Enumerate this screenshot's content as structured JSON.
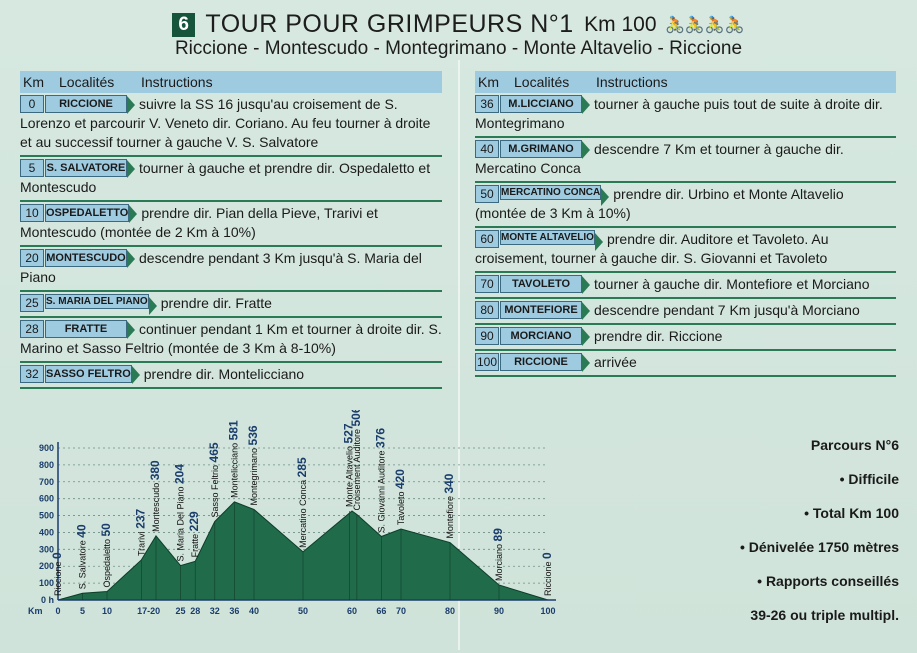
{
  "header": {
    "number": "6",
    "title": "TOUR POUR GRIMPEURS N°1",
    "km": "Km 100",
    "bikes": "🚴🚴🚴🚴",
    "subtitle": "Riccione - Montescudo - Montegrimano - Monte Altavelio - Riccione"
  },
  "columns": {
    "km": "Km",
    "localites": "Localités",
    "instructions": "Instructions"
  },
  "left_rows": [
    {
      "km": "0",
      "loc": "RICCIONE",
      "text": "suivre la SS 16 jusqu'au croisement de S. Lorenzo et parcourir V. Veneto dir. Coriano. Au feu tourner à droite et au successif tourner à gauche V. S. Salvatore"
    },
    {
      "km": "5",
      "loc": "S. SALVATORE",
      "text": "tourner à gauche et prendre dir. Ospedaletto et Montescudo"
    },
    {
      "km": "10",
      "loc": "OSPEDALETTO",
      "text": "prendre dir. Pian della Pieve, Trarivi et Montescudo (montée de 2 Km à 10%)"
    },
    {
      "km": "20",
      "loc": "MONTESCUDO",
      "text": "descendre pendant 3 Km jusqu'à S. Maria del Piano"
    },
    {
      "km": "25",
      "loc": "S. MARIA DEL PIANO",
      "text": "prendre dir. Fratte"
    },
    {
      "km": "28",
      "loc": "FRATTE",
      "text": "continuer pendant 1 Km et tourner à droite dir. S. Marino et Sasso Feltrio (montée de 3 Km à 8-10%)"
    },
    {
      "km": "32",
      "loc": "SASSO FELTRO",
      "text": "prendre dir. Montelicciano"
    }
  ],
  "right_rows": [
    {
      "km": "36",
      "loc": "M.LICCIANO",
      "text": "tourner à gauche puis tout de suite à droite dir. Montegrimano"
    },
    {
      "km": "40",
      "loc": "M.GRIMANO",
      "text": "descendre 7 Km et tourner à gauche dir. Mercatino Conca"
    },
    {
      "km": "50",
      "loc": "MERCATINO CONCA",
      "text": "prendre dir. Urbino et Monte Altavelio (montée de 3 Km à 10%)"
    },
    {
      "km": "60",
      "loc": "MONTE ALTAVELIO",
      "text": "prendre dir. Auditore et Tavoleto. Au croisement, tourner à gauche dir. S. Giovanni et Tavoleto"
    },
    {
      "km": "70",
      "loc": "TAVOLETO",
      "text": "tourner à gauche dir. Montefiore et Morciano"
    },
    {
      "km": "80",
      "loc": "MONTEFIORE",
      "text": "descendre pendant 7 Km jusqu'à Morciano"
    },
    {
      "km": "90",
      "loc": "MORCIANO",
      "text": "prendre dir. Riccione"
    },
    {
      "km": "100",
      "loc": "RICCIONE",
      "text": "arrivée"
    }
  ],
  "info": {
    "parcours": "Parcours N°6",
    "difficulty": "• Difficile",
    "total": "• Total Km 100",
    "denivelee": "• Dénivelée 1750 mètres",
    "rapports": "• Rapports conseillés",
    "gears": "39-26 ou triple multipl."
  },
  "chart_data": {
    "type": "area",
    "ylim": [
      0,
      900
    ],
    "y_ticks": [
      "0 h",
      "100",
      "200",
      "300",
      "400",
      "500",
      "600",
      "700",
      "800",
      "900"
    ],
    "x_label": "Km",
    "x_ticks": [
      "0",
      "5",
      "10",
      "17-20",
      "25",
      "28",
      "32",
      "36",
      "40",
      "50",
      "60",
      "66",
      "70",
      "80",
      "90",
      "100"
    ],
    "x_tick_values": [
      0,
      5,
      10,
      18.5,
      25,
      28,
      32,
      36,
      40,
      50,
      60,
      66,
      70,
      80,
      90,
      100
    ],
    "profile": [
      {
        "x": 0,
        "y": 0
      },
      {
        "x": 5,
        "y": 40
      },
      {
        "x": 10,
        "y": 50
      },
      {
        "x": 17,
        "y": 237
      },
      {
        "x": 20,
        "y": 380
      },
      {
        "x": 25,
        "y": 204
      },
      {
        "x": 28,
        "y": 229
      },
      {
        "x": 32,
        "y": 465
      },
      {
        "x": 36,
        "y": 581
      },
      {
        "x": 40,
        "y": 536
      },
      {
        "x": 50,
        "y": 285
      },
      {
        "x": 60,
        "y": 527
      },
      {
        "x": 61,
        "y": 506
      },
      {
        "x": 66,
        "y": 376
      },
      {
        "x": 70,
        "y": 420
      },
      {
        "x": 80,
        "y": 340
      },
      {
        "x": 90,
        "y": 89
      },
      {
        "x": 100,
        "y": 0
      }
    ],
    "labels": [
      {
        "name": "Riccione",
        "alt": "0",
        "x": 0
      },
      {
        "name": "S. Salvatore",
        "alt": "40",
        "x": 5
      },
      {
        "name": "Ospedaletto",
        "alt": "50",
        "x": 10
      },
      {
        "name": "Trarivi",
        "alt": "237",
        "x": 17
      },
      {
        "name": "Montescudo",
        "alt": "380",
        "x": 20
      },
      {
        "name": "S. Maria Del Piano",
        "alt": "204",
        "x": 25
      },
      {
        "name": "Fratte",
        "alt": "229",
        "x": 28
      },
      {
        "name": "Sasso Feltrio",
        "alt": "465",
        "x": 32
      },
      {
        "name": "Montelicciano",
        "alt": "581",
        "x": 36
      },
      {
        "name": "Montegrimano",
        "alt": "536",
        "x": 40
      },
      {
        "name": "Mercatino Conca",
        "alt": "285",
        "x": 50
      },
      {
        "name": "Monte Altavelio",
        "alt": "527",
        "x": 59.5
      },
      {
        "name": "Croisement Auditore",
        "alt": "506",
        "x": 61
      },
      {
        "name": "S. Giovanni Auditore",
        "alt": "376",
        "x": 66
      },
      {
        "name": "Tavoleto",
        "alt": "420",
        "x": 70
      },
      {
        "name": "Montefiore",
        "alt": "340",
        "x": 80
      },
      {
        "name": "Morciano",
        "alt": "89",
        "x": 90
      },
      {
        "name": "Riccione",
        "alt": "0",
        "x": 100
      }
    ],
    "fill_color": "#1f6b4a",
    "grid": true
  }
}
